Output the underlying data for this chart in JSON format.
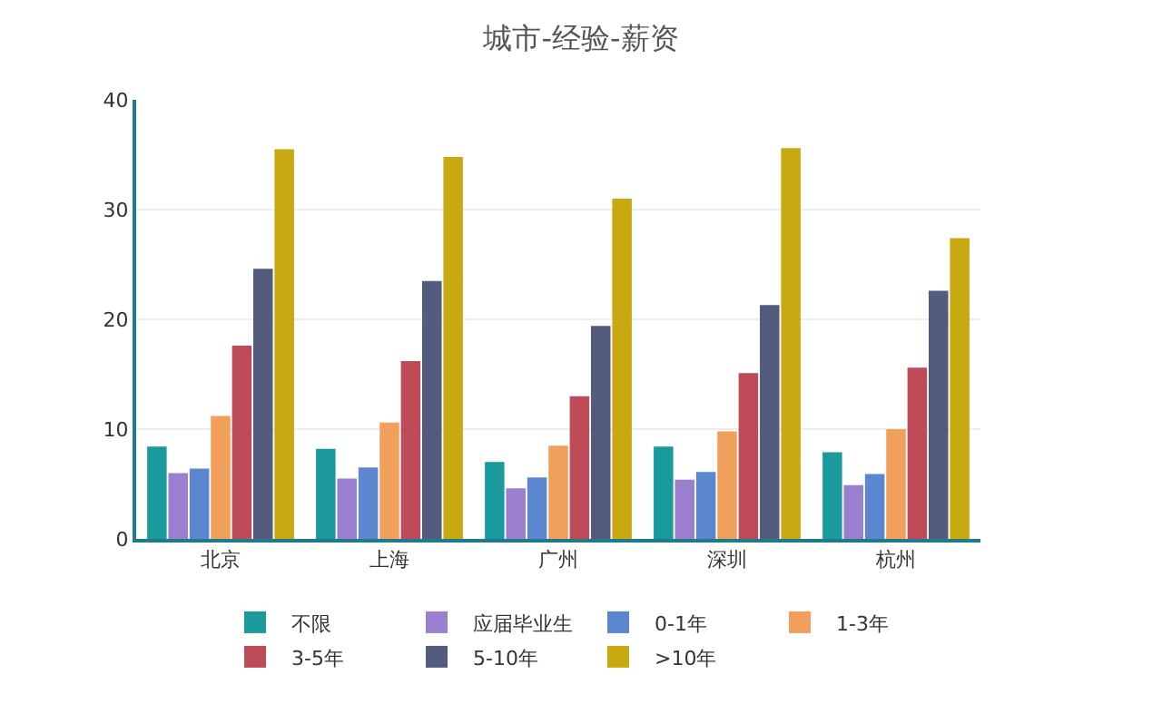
{
  "chart_data": {
    "type": "bar",
    "title": "城市-经验-薪资",
    "categories": [
      "北京",
      "上海",
      "广州",
      "深圳",
      "杭州"
    ],
    "series": [
      {
        "name": "不限",
        "color": "#1a9a9a",
        "values": [
          8.4,
          8.2,
          7.0,
          8.4,
          7.9
        ]
      },
      {
        "name": "应届毕业生",
        "color": "#9a80cf",
        "values": [
          6.0,
          5.5,
          4.6,
          5.4,
          4.9
        ]
      },
      {
        "name": "0-1年",
        "color": "#5a87cf",
        "values": [
          6.4,
          6.5,
          5.6,
          6.1,
          5.9
        ]
      },
      {
        "name": "1-3年",
        "color": "#f0a05a",
        "values": [
          11.2,
          10.6,
          8.5,
          9.8,
          10.0
        ]
      },
      {
        "name": "3-5年",
        "color": "#c04b58",
        "values": [
          17.6,
          16.2,
          13.0,
          15.1,
          15.6
        ]
      },
      {
        "name": "5-10年",
        "color": "#545c7e",
        "values": [
          24.6,
          23.5,
          19.4,
          21.3,
          22.6
        ]
      },
      {
        "name": ">10年",
        "color": "#c8a912",
        "values": [
          35.5,
          34.8,
          31.0,
          35.6,
          27.4
        ]
      }
    ],
    "ylim": [
      0,
      40
    ],
    "yticks": [
      0,
      10,
      20,
      30,
      40
    ],
    "grid": "y",
    "legend": "bottom"
  }
}
